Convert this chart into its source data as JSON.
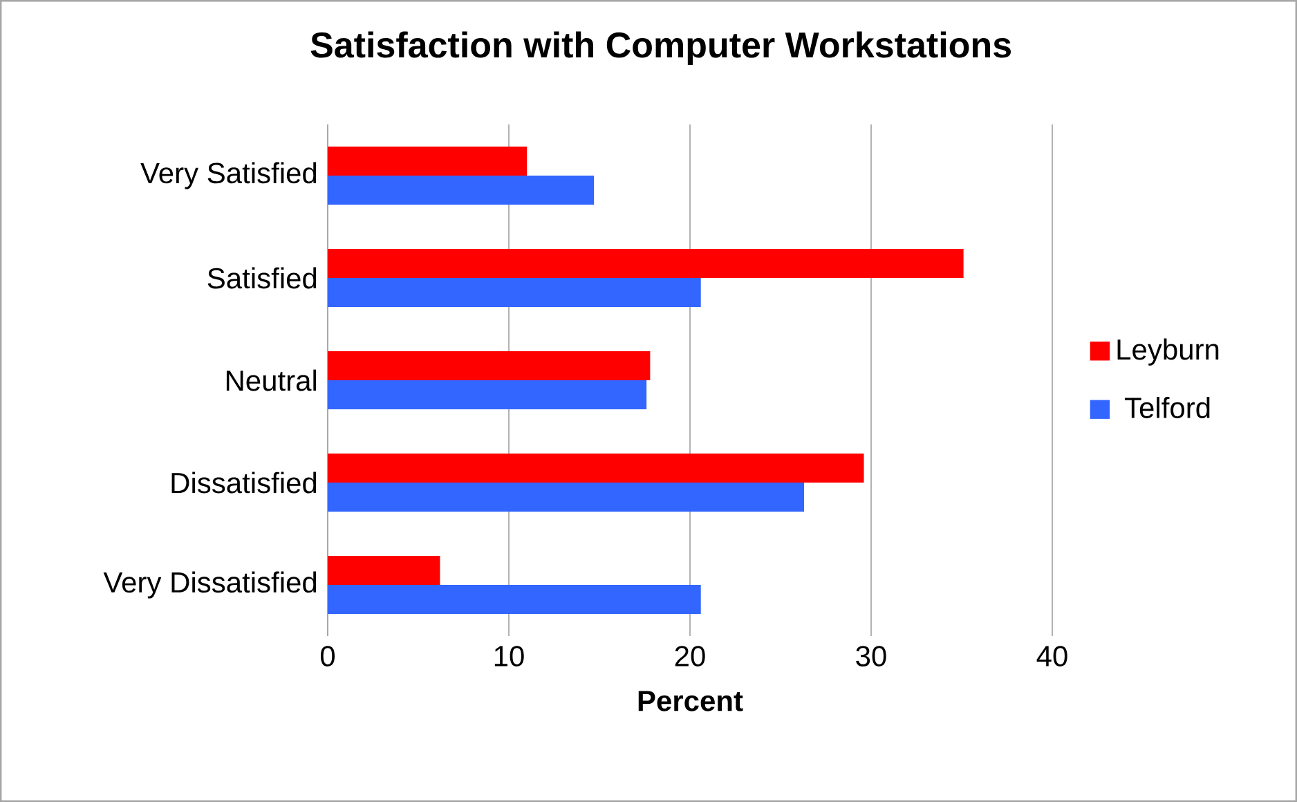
{
  "chart_data": {
    "type": "bar",
    "orientation": "horizontal",
    "title": "Satisfaction with Computer Workstations",
    "xlabel": "Percent",
    "categories": [
      "Very Satisfied",
      "Satisfied",
      "Neutral",
      "Dissatisfied",
      "Very Dissatisfied"
    ],
    "series": [
      {
        "name": "Leyburn",
        "color": "#ff0000",
        "values": [
          11.0,
          35.1,
          17.8,
          29.6,
          6.2
        ]
      },
      {
        "name": "Telford",
        "color": "#3366ff",
        "values": [
          14.7,
          20.6,
          17.6,
          26.3,
          20.6
        ]
      }
    ],
    "xlim": [
      0,
      40
    ],
    "xticks": [
      0,
      10,
      20,
      30,
      40
    ],
    "grid": "x",
    "legend": "right"
  }
}
